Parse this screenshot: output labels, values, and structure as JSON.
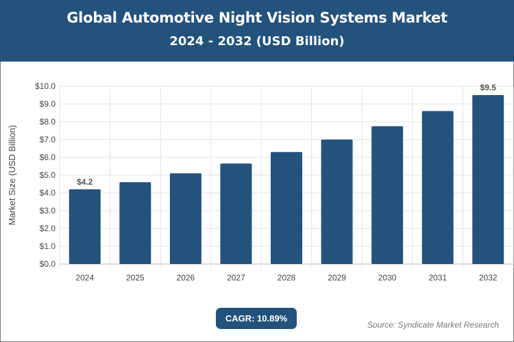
{
  "header": {
    "title": "Global Automotive Night Vision Systems Market",
    "subtitle": "2024 - 2032 (USD Billion)"
  },
  "chart_data": {
    "type": "bar",
    "title": "Global Automotive Night Vision Systems Market",
    "subtitle": "2024 - 2032 (USD Billion)",
    "categories": [
      "2024",
      "2025",
      "2026",
      "2027",
      "2028",
      "2029",
      "2030",
      "2031",
      "2032"
    ],
    "values": [
      4.2,
      4.6,
      5.1,
      5.65,
      6.3,
      7.0,
      7.75,
      8.6,
      9.5
    ],
    "data_labels": {
      "0": "$4.2",
      "8": "$9.5"
    },
    "xlabel": "",
    "ylabel": "Market Size (USD Billion)",
    "ylim": [
      0,
      10
    ],
    "yticks": [
      "$0.0",
      "$1.0",
      "$2.0",
      "$3.0",
      "$4.0",
      "$5.0",
      "$6.0",
      "$7.0",
      "$8.0",
      "$9.0",
      "$10.0"
    ],
    "grid": true,
    "bar_color": "#23527c"
  },
  "footer": {
    "cagr": "CAGR: 10.89%",
    "source": "Source: Syndicate Market Research"
  }
}
